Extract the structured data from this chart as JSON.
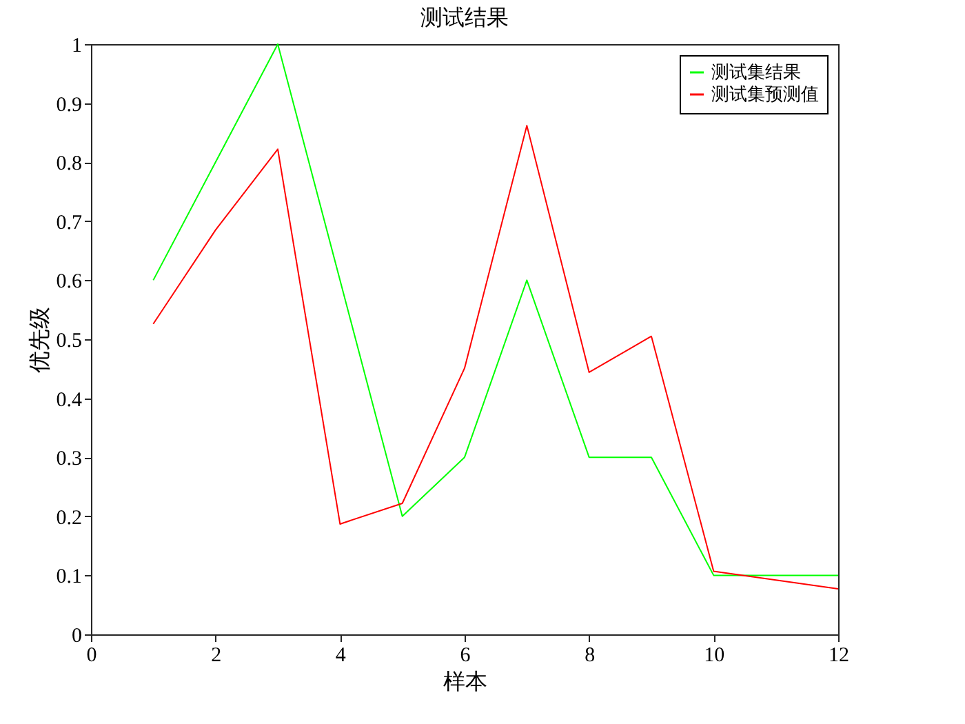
{
  "chart_data": {
    "type": "line",
    "title": "测试结果",
    "xlabel": "样本",
    "ylabel": "优先级",
    "x": [
      1,
      2,
      3,
      4,
      5,
      6,
      7,
      8,
      9,
      10,
      11,
      12
    ],
    "series": [
      {
        "name": "测试集结果",
        "color": "#00ff00",
        "values": [
          0.6,
          0.8,
          1.0,
          0.6,
          0.2,
          0.3,
          0.6,
          0.3,
          0.3,
          0.1,
          0.1,
          0.1
        ]
      },
      {
        "name": "测试集预测值",
        "color": "#ff0000",
        "values": [
          0.526,
          0.685,
          0.822,
          0.187,
          0.222,
          0.451,
          0.862,
          0.444,
          0.505,
          0.107,
          0.092,
          0.077
        ]
      }
    ],
    "xlim": [
      0,
      12
    ],
    "xticks": [
      0,
      2,
      4,
      6,
      8,
      10,
      12
    ],
    "ylim": [
      0,
      1
    ],
    "yticks": [
      0,
      0.1,
      0.2,
      0.3,
      0.4,
      0.5,
      0.6,
      0.7,
      0.8,
      0.9,
      1
    ],
    "legend": "top right",
    "grid": false,
    "marker": "none",
    "line_style": "solid"
  }
}
